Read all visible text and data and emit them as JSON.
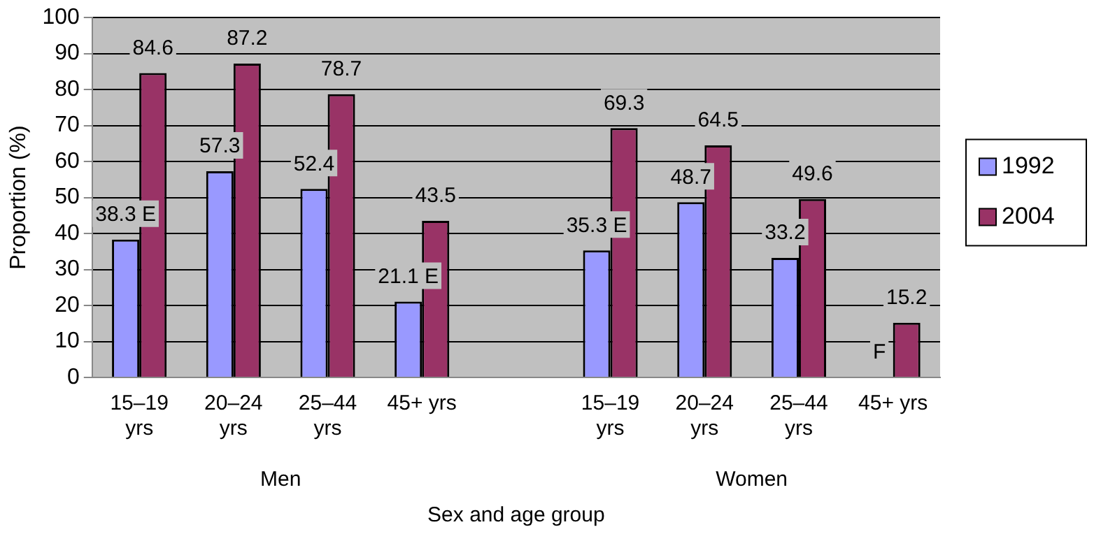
{
  "chart_data": {
    "type": "bar",
    "xlabel": "Sex and age group",
    "ylabel": "Proportion (%)",
    "categories": [
      "15–19 yrs",
      "20–24 yrs",
      "25–44 yrs",
      "45+ yrs",
      null,
      "15–19 yrs",
      "20–24 yrs",
      "25–44 yrs",
      "45+ yrs"
    ],
    "series": [
      {
        "name": "1992",
        "color": "#9999ff",
        "values": [
          38.3,
          57.3,
          52.4,
          21.1,
          null,
          35.3,
          48.7,
          33.2,
          0
        ],
        "value_labels": [
          "38.3 E",
          "57.3",
          "52.4",
          "21.1 E",
          null,
          "35.3 E",
          "48.7",
          "33.2",
          "F"
        ]
      },
      {
        "name": "2004",
        "color": "#993366",
        "values": [
          84.6,
          87.2,
          78.7,
          43.5,
          null,
          69.3,
          64.5,
          49.6,
          15.2
        ],
        "value_labels": [
          "84.6",
          "87.2",
          "78.7",
          "43.5",
          null,
          "69.3",
          "64.5",
          "49.6",
          "15.2"
        ]
      }
    ],
    "annotations": [
      "Men",
      "Women"
    ],
    "ylim": [
      0,
      100
    ],
    "yticks": [
      0,
      10,
      20,
      30,
      40,
      50,
      60,
      70,
      80,
      90,
      100
    ],
    "grid": "y",
    "legend": "right"
  }
}
